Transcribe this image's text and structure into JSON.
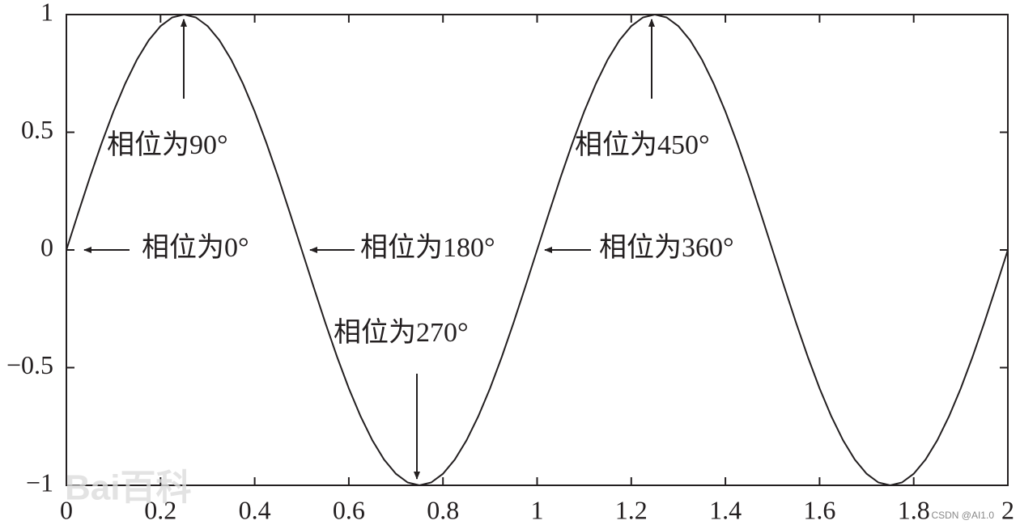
{
  "chart_data": {
    "type": "line",
    "x": [
      0,
      0.025,
      0.05,
      0.075,
      0.1,
      0.125,
      0.15,
      0.175,
      0.2,
      0.225,
      0.25,
      0.275,
      0.3,
      0.325,
      0.35,
      0.375,
      0.4,
      0.425,
      0.45,
      0.475,
      0.5,
      0.525,
      0.55,
      0.575,
      0.6,
      0.625,
      0.65,
      0.675,
      0.7,
      0.725,
      0.75,
      0.775,
      0.8,
      0.825,
      0.85,
      0.875,
      0.9,
      0.925,
      0.95,
      0.975,
      1,
      1.025,
      1.05,
      1.075,
      1.1,
      1.125,
      1.15,
      1.175,
      1.2,
      1.225,
      1.25,
      1.275,
      1.3,
      1.325,
      1.35,
      1.375,
      1.4,
      1.425,
      1.45,
      1.475,
      1.5,
      1.525,
      1.55,
      1.575,
      1.6,
      1.625,
      1.65,
      1.675,
      1.7,
      1.725,
      1.75,
      1.775,
      1.8,
      1.825,
      1.85,
      1.875,
      1.9,
      1.925,
      1.95,
      1.975,
      2
    ],
    "values": [
      0,
      0.156,
      0.309,
      0.454,
      0.588,
      0.707,
      0.809,
      0.891,
      0.951,
      0.988,
      1,
      0.988,
      0.951,
      0.891,
      0.809,
      0.707,
      0.588,
      0.454,
      0.309,
      0.156,
      0,
      -0.156,
      -0.309,
      -0.454,
      -0.588,
      -0.707,
      -0.809,
      -0.891,
      -0.951,
      -0.988,
      -1,
      -0.988,
      -0.951,
      -0.891,
      -0.809,
      -0.707,
      -0.588,
      -0.454,
      -0.309,
      -0.156,
      0,
      0.156,
      0.309,
      0.454,
      0.588,
      0.707,
      0.809,
      0.891,
      0.951,
      0.988,
      1,
      0.988,
      0.951,
      0.891,
      0.809,
      0.707,
      0.588,
      0.454,
      0.309,
      0.156,
      0,
      -0.156,
      -0.309,
      -0.454,
      -0.588,
      -0.707,
      -0.809,
      -0.891,
      -0.951,
      -0.988,
      -1,
      -0.988,
      -0.951,
      -0.891,
      -0.809,
      -0.707,
      -0.588,
      -0.454,
      -0.309,
      -0.156,
      0
    ],
    "color": "#231f20",
    "xlim": [
      0,
      2
    ],
    "xticks": [
      0,
      0.2,
      0.4,
      0.6,
      0.8,
      1,
      1.2,
      1.4,
      1.6,
      1.8,
      2
    ],
    "ylim": [
      -1,
      1
    ],
    "yticks": [
      {
        "value": -1,
        "label": "−1"
      },
      {
        "value": -0.5,
        "label": "−0.5"
      },
      0,
      0.5,
      1
    ],
    "grid": false,
    "annotations": [
      "相位为0°",
      "相位为90°",
      "相位为180°",
      "相位为270°",
      "相位为360°",
      "相位为450°"
    ],
    "watermarks": [
      "Bai百科",
      "CSDN @AI1.0"
    ]
  }
}
